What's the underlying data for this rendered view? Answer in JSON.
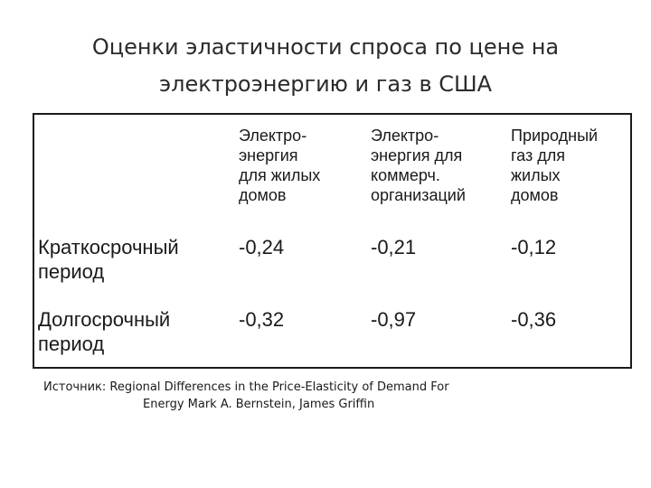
{
  "title": {
    "line1": "Оценки эластичности спроса по цене на",
    "line2": "электроэнергию и газ в США"
  },
  "table": {
    "columns": [
      "Электро-\nэнергия\nдля жилых\nдомов",
      "Электро-\nэнергия для\nкоммерч.\nорганизаций",
      "Природный\nгаз для\nжилых\nдомов"
    ],
    "rows": [
      {
        "label": "Краткосрочный\nпериод",
        "values": [
          "-0,24",
          "-0,21",
          "-0,12"
        ]
      },
      {
        "label": "Долгосрочный\nпериод",
        "values": [
          "-0,32",
          "-0,97",
          "-0,36"
        ]
      }
    ]
  },
  "source": {
    "line1": "Источник: Regional Differences in the Price-Elasticity of Demand For",
    "line2": "Energy Mark A. Bernstein, James Griffin"
  }
}
